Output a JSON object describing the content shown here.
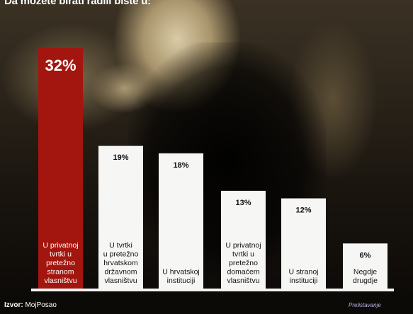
{
  "headline": "Da možete birati radili biste u:",
  "source": {
    "prefix": "Izvor:",
    "value": "MojPosao"
  },
  "signature": "Prelistavanje",
  "colors": {
    "highlight": "#a3160f",
    "bar": "#f6f6f4",
    "highlight_text": "#ffffff",
    "bar_text": "#111111"
  },
  "chart_data": {
    "type": "bar",
    "categories": [
      "U privatnoj tvrtki u pretežno stranom vlasništvu",
      "U tvrtki u pretežno hrvatskom državnom vlasništvu",
      "U hrvatskoj instituciji",
      "U privatnoj tvrtki u pretežno domaćem vlasništvu",
      "U stranoj instituciji",
      "Negdje drugdje"
    ],
    "category_lines": [
      [
        "U privatnoj",
        "tvrtki u",
        "pretežno",
        "stranom",
        "vlasništvu"
      ],
      [
        "U tvrtki",
        "u pretežno",
        "hrvatskom",
        "državnom",
        "vlasništvu"
      ],
      [
        "U hrvatskoj",
        "instituciji"
      ],
      [
        "U privatnoj",
        "tvrtki u",
        "pretežno",
        "domaćem",
        "vlasništvu"
      ],
      [
        "U stranoj",
        "instituciji"
      ],
      [
        "Negdje",
        "drugdje"
      ]
    ],
    "values": [
      32,
      19,
      18,
      13,
      12,
      6
    ],
    "value_labels": [
      "32%",
      "19%",
      "18%",
      "13%",
      "12%",
      "6%"
    ],
    "highlight_index": 0,
    "ylim": [
      0,
      32
    ],
    "title": "",
    "xlabel": "",
    "ylabel": ""
  }
}
